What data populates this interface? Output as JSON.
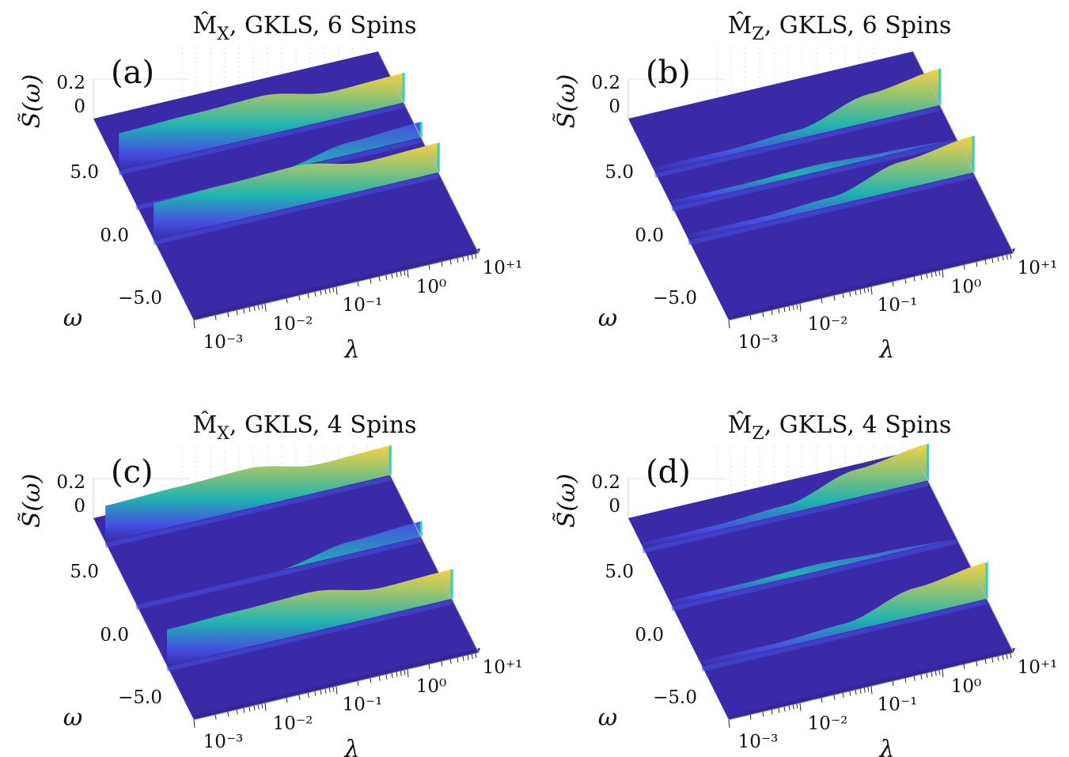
{
  "figure": {
    "panels": [
      {
        "id": "a",
        "label": "(a)",
        "title_op": "M̂",
        "title_sub": "X",
        "title_rest": ", GKLS, 6 Spins"
      },
      {
        "id": "b",
        "label": "(b)",
        "title_op": "M̂",
        "title_sub": "Z",
        "title_rest": ", GKLS, 6 Spins"
      },
      {
        "id": "c",
        "label": "(c)",
        "title_op": "M̂",
        "title_sub": "X",
        "title_rest": ", GKLS, 4 Spins"
      },
      {
        "id": "d",
        "label": "(d)",
        "title_op": "M̂",
        "title_sub": "Z",
        "title_rest": ", GKLS, 4 Spins"
      }
    ],
    "z_axis_label": "S̃(ω)",
    "omega_axis_label": "ω",
    "lambda_axis_label": "λ",
    "z_ticks": [
      "0.2",
      "0"
    ],
    "omega_ticks": [
      "5.0",
      "0.0",
      "−5.0"
    ],
    "lambda_ticks": [
      "10⁻³",
      "10⁻²",
      "10⁻¹",
      "10⁰",
      "10⁺¹"
    ],
    "colors": {
      "floor": "#3b2aa7",
      "low": "#4450e0",
      "mid": "#1fb3b0",
      "high": "#f8d23a"
    }
  },
  "chart_data": [
    {
      "panel": "a",
      "type": "surface",
      "title": "M̂X, GKLS, 6 Spins",
      "xlabel": "λ",
      "ylabel": "ω",
      "zlabel": "S̃(ω)",
      "x_scale": "log",
      "xlim": [
        0.001,
        10
      ],
      "ylim": [
        -7,
        8
      ],
      "zlim": [
        0,
        0.25
      ],
      "ridges": [
        {
          "omega": 4.2,
          "lambda": [
            0.001,
            0.01,
            0.1,
            1,
            10
          ],
          "peak": [
            0.21,
            0.22,
            0.23,
            0.16,
            0.17
          ]
        },
        {
          "omega": -1.0,
          "lambda": [
            0.001,
            0.01,
            0.1,
            1,
            10
          ],
          "peak": [
            0.21,
            0.22,
            0.23,
            0.16,
            0.17
          ]
        },
        {
          "omega": 1.6,
          "lambda": [
            0.001,
            0.01,
            0.1,
            1,
            10
          ],
          "peak": [
            0.0,
            0.0,
            0.0,
            0.07,
            0.09
          ]
        }
      ]
    },
    {
      "panel": "b",
      "type": "surface",
      "title": "M̂Z, GKLS, 6 Spins",
      "xlabel": "λ",
      "ylabel": "ω",
      "zlabel": "S̃(ω)",
      "x_scale": "log",
      "xlim": [
        0.001,
        10
      ],
      "ylim": [
        -7,
        8
      ],
      "zlim": [
        0,
        0.25
      ],
      "ridges": [
        {
          "omega": 4.0,
          "lambda": [
            0.001,
            0.01,
            0.1,
            1,
            10
          ],
          "peak": [
            0.03,
            0.03,
            0.05,
            0.16,
            0.21
          ]
        },
        {
          "omega": 1.5,
          "lambda": [
            0.001,
            0.01,
            0.1,
            1,
            10
          ],
          "peak": [
            0.03,
            0.03,
            0.04,
            0.02,
            0.0
          ]
        },
        {
          "omega": -1.0,
          "lambda": [
            0.001,
            0.01,
            0.1,
            1,
            10
          ],
          "peak": [
            0.03,
            0.03,
            0.05,
            0.16,
            0.21
          ]
        }
      ]
    },
    {
      "panel": "c",
      "type": "surface",
      "title": "M̂X, GKLS, 4 Spins",
      "xlabel": "λ",
      "ylabel": "ω",
      "zlabel": "S̃(ω)",
      "x_scale": "log",
      "xlim": [
        0.001,
        10
      ],
      "ylim": [
        -7,
        8
      ],
      "zlim": [
        0,
        0.25
      ],
      "ridges": [
        {
          "omega": 6.2,
          "lambda": [
            0.001,
            0.01,
            0.1,
            1,
            10
          ],
          "peak": [
            0.21,
            0.22,
            0.23,
            0.16,
            0.17
          ]
        },
        {
          "omega": -3.0,
          "lambda": [
            0.001,
            0.01,
            0.1,
            1,
            10
          ],
          "peak": [
            0.21,
            0.22,
            0.23,
            0.16,
            0.17
          ]
        },
        {
          "omega": 1.6,
          "lambda": [
            0.001,
            0.01,
            0.1,
            1,
            10
          ],
          "peak": [
            0.0,
            0.0,
            0.0,
            0.07,
            0.09
          ]
        }
      ]
    },
    {
      "panel": "d",
      "type": "surface",
      "title": "M̂Z, GKLS, 4 Spins",
      "xlabel": "λ",
      "ylabel": "ω",
      "zlabel": "S̃(ω)",
      "x_scale": "log",
      "xlim": [
        0.001,
        10
      ],
      "ylim": [
        -7,
        8
      ],
      "zlim": [
        0,
        0.25
      ],
      "ridges": [
        {
          "omega": 5.8,
          "lambda": [
            0.001,
            0.01,
            0.1,
            1,
            10
          ],
          "peak": [
            0.03,
            0.03,
            0.05,
            0.16,
            0.21
          ]
        },
        {
          "omega": 1.5,
          "lambda": [
            0.001,
            0.01,
            0.1,
            1,
            10
          ],
          "peak": [
            0.03,
            0.03,
            0.04,
            0.02,
            0.0
          ]
        },
        {
          "omega": -3.0,
          "lambda": [
            0.001,
            0.01,
            0.1,
            1,
            10
          ],
          "peak": [
            0.03,
            0.03,
            0.05,
            0.16,
            0.21
          ]
        }
      ]
    }
  ]
}
